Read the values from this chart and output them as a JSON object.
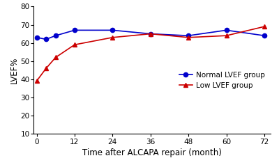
{
  "normal_x": [
    0,
    3,
    6,
    12,
    24,
    36,
    48,
    60,
    72
  ],
  "normal_y": [
    63,
    62,
    64,
    67,
    67,
    65,
    64,
    67,
    64
  ],
  "low_x": [
    0,
    3,
    6,
    12,
    24,
    36,
    48,
    60,
    72
  ],
  "low_y": [
    39,
    46,
    52,
    59,
    63,
    65,
    63,
    64,
    69
  ],
  "normal_color": "#0000cc",
  "low_color": "#cc0000",
  "xlabel": "Time after ALCAPA repair (month)",
  "ylabel": "LVEF%",
  "legend_normal": "Normal LVEF group",
  "legend_low": "Low LVEF group",
  "ylim": [
    10,
    80
  ],
  "yticks": [
    10,
    20,
    30,
    40,
    50,
    60,
    70,
    80
  ],
  "xticks": [
    0,
    12,
    24,
    36,
    48,
    60,
    72
  ],
  "xlabel_fontsize": 8.5,
  "ylabel_fontsize": 8.5,
  "legend_fontsize": 7.5,
  "tick_fontsize": 7.5,
  "linewidth": 1.2,
  "markersize": 4.5
}
